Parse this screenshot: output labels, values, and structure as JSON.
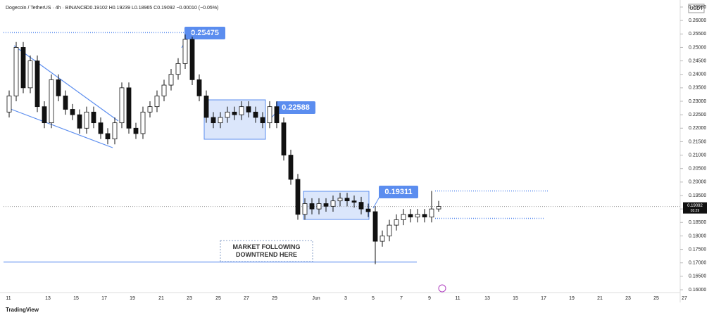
{
  "header": {
    "symbol": "Dogecoin / TetherUS · 4h · BINANCE",
    "ohlc": "O0.19102 H0.19239 L0.18965 C0.19092 −0.00010 (−0.05%)",
    "currency": "USDT",
    "brand": "TradingView"
  },
  "chart_data": {
    "type": "candlestick",
    "open": [
      0.226,
      0.232,
      0.25,
      0.235,
      0.245,
      0.228,
      0.222,
      0.238,
      0.232,
      0.227,
      0.225,
      0.22,
      0.226,
      0.222,
      0.218,
      0.216,
      0.222,
      0.235,
      0.22,
      0.218,
      0.226,
      0.228,
      0.232,
      0.236,
      0.24,
      0.244,
      0.253,
      0.238,
      0.232,
      0.224,
      0.222,
      0.224,
      0.226,
      0.225,
      0.228,
      0.226,
      0.224,
      0.222,
      0.228,
      0.222,
      0.21,
      0.201,
      0.188,
      0.192,
      0.19,
      0.192,
      0.191,
      0.193,
      0.194,
      0.193,
      0.1925,
      0.19,
      0.189,
      0.178,
      0.18,
      0.184,
      0.186,
      0.188,
      0.187,
      0.188,
      0.187,
      0.19
    ],
    "high": [
      0.234,
      0.252,
      0.252,
      0.247,
      0.247,
      0.23,
      0.24,
      0.24,
      0.234,
      0.229,
      0.227,
      0.228,
      0.228,
      0.224,
      0.22,
      0.224,
      0.237,
      0.237,
      0.222,
      0.228,
      0.23,
      0.234,
      0.238,
      0.242,
      0.246,
      0.2548,
      0.254,
      0.24,
      0.234,
      0.226,
      0.226,
      0.228,
      0.228,
      0.23,
      0.23,
      0.228,
      0.226,
      0.23,
      0.23,
      0.224,
      0.212,
      0.203,
      0.194,
      0.194,
      0.194,
      0.194,
      0.195,
      0.196,
      0.196,
      0.195,
      0.1945,
      0.192,
      0.191,
      0.182,
      0.186,
      0.188,
      0.19,
      0.19,
      0.19,
      0.19,
      0.1967,
      0.193
    ],
    "low": [
      0.224,
      0.23,
      0.233,
      0.233,
      0.226,
      0.22,
      0.22,
      0.23,
      0.225,
      0.223,
      0.218,
      0.218,
      0.22,
      0.216,
      0.214,
      0.214,
      0.22,
      0.218,
      0.216,
      0.216,
      0.224,
      0.226,
      0.23,
      0.234,
      0.238,
      0.242,
      0.236,
      0.23,
      0.222,
      0.22,
      0.22,
      0.222,
      0.223,
      0.223,
      0.224,
      0.222,
      0.22,
      0.22,
      0.22,
      0.208,
      0.199,
      0.186,
      0.186,
      0.188,
      0.188,
      0.189,
      0.189,
      0.191,
      0.191,
      0.1905,
      0.188,
      0.187,
      0.1695,
      0.176,
      0.178,
      0.182,
      0.184,
      0.185,
      0.185,
      0.185,
      0.185,
      0.189
    ],
    "close": [
      0.232,
      0.25,
      0.235,
      0.245,
      0.228,
      0.222,
      0.238,
      0.232,
      0.227,
      0.225,
      0.22,
      0.226,
      0.222,
      0.218,
      0.216,
      0.222,
      0.235,
      0.22,
      0.218,
      0.226,
      0.228,
      0.232,
      0.236,
      0.24,
      0.244,
      0.253,
      0.238,
      0.232,
      0.224,
      0.222,
      0.224,
      0.226,
      0.225,
      0.228,
      0.226,
      0.224,
      0.222,
      0.228,
      0.222,
      0.21,
      0.201,
      0.188,
      0.192,
      0.19,
      0.192,
      0.191,
      0.193,
      0.194,
      0.193,
      0.1925,
      0.19,
      0.189,
      0.178,
      0.18,
      0.184,
      0.186,
      0.188,
      0.187,
      0.188,
      0.187,
      0.19,
      0.19092
    ],
    "up_color": "#ffffff",
    "down_color": "#111111",
    "x_labels": [
      "11",
      "13",
      "15",
      "17",
      "19",
      "21",
      "23",
      "25",
      "27",
      "29",
      "Jun",
      "3",
      "5",
      "7",
      "9",
      "11",
      "13",
      "15",
      "17",
      "19",
      "21",
      "23",
      "25",
      "27"
    ],
    "ylim": [
      0.16,
      0.265
    ],
    "yticks": [
      {
        "value": 0.265,
        "label": "0.26500"
      },
      {
        "value": 0.26,
        "label": "0.26000"
      },
      {
        "value": 0.255,
        "label": "0.25500"
      },
      {
        "value": 0.25,
        "label": "0.25000"
      },
      {
        "value": 0.245,
        "label": "0.24500"
      },
      {
        "value": 0.24,
        "label": "0.24000"
      },
      {
        "value": 0.235,
        "label": "0.23500"
      },
      {
        "value": 0.23,
        "label": "0.23000"
      },
      {
        "value": 0.225,
        "label": "0.22500"
      },
      {
        "value": 0.22,
        "label": "0.22000"
      },
      {
        "value": 0.215,
        "label": "0.21500"
      },
      {
        "value": 0.21,
        "label": "0.21000"
      },
      {
        "value": 0.205,
        "label": "0.20500"
      },
      {
        "value": 0.2,
        "label": "0.20000"
      },
      {
        "value": 0.195,
        "label": "0.19500"
      },
      {
        "value": 0.19,
        "label": "0.19000"
      },
      {
        "value": 0.185,
        "label": "0.18500"
      },
      {
        "value": 0.18,
        "label": "0.18000"
      },
      {
        "value": 0.175,
        "label": "0.17500"
      },
      {
        "value": 0.17,
        "label": "0.17000"
      },
      {
        "value": 0.165,
        "label": "0.16500"
      },
      {
        "value": 0.16,
        "label": "0.16000"
      }
    ],
    "price_labels": [
      0.25475,
      0.22588,
      0.19311
    ],
    "levels": [
      0.2555,
      0.1967,
      0.1865,
      0.1703
    ],
    "last_price": 0.19092,
    "countdown": "03:29",
    "annotation": "MARKET FOLLOWING DOWNTREND HERE"
  }
}
